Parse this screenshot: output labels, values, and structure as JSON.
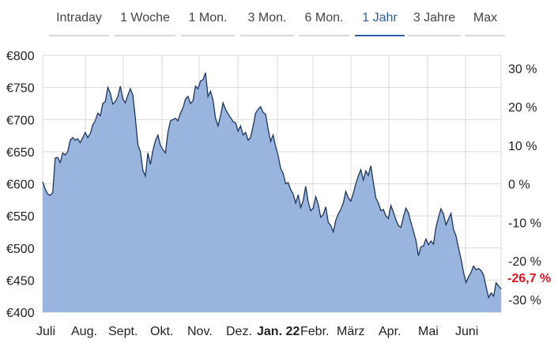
{
  "tabs": [
    {
      "label": "Intraday",
      "active": false
    },
    {
      "label": "1 Woche",
      "active": false
    },
    {
      "label": "1 Mon.",
      "active": false
    },
    {
      "label": "3 Mon.",
      "active": false
    },
    {
      "label": "6 Mon.",
      "active": false
    },
    {
      "label": "1 Jahr",
      "active": true
    },
    {
      "label": "3 Jahre",
      "active": false
    },
    {
      "label": "Max",
      "active": false
    }
  ],
  "colors": {
    "accent": "#2b5ea8",
    "area_fill": "#9ab5dd",
    "line": "#1c3560",
    "negative": "#e0141e",
    "grid": "#d9d9d9"
  },
  "current_change_label": "-26,7 %",
  "chart_data": {
    "type": "area",
    "y_unit": "€",
    "ylim": [
      400,
      800
    ],
    "y_ticks": [
      {
        "value": 800,
        "label": "€800"
      },
      {
        "value": 750,
        "label": "€750"
      },
      {
        "value": 700,
        "label": "€700"
      },
      {
        "value": 650,
        "label": "€650"
      },
      {
        "value": 600,
        "label": "€600"
      },
      {
        "value": 550,
        "label": "€550"
      },
      {
        "value": 500,
        "label": "€500"
      },
      {
        "value": 450,
        "label": "€450"
      },
      {
        "value": 400,
        "label": "€400"
      }
    ],
    "y2_ticks": [
      {
        "value": 30,
        "label": "30 %"
      },
      {
        "value": 20,
        "label": "20 %"
      },
      {
        "value": 10,
        "label": "10 %"
      },
      {
        "value": 0,
        "label": "0 %"
      },
      {
        "value": -10,
        "label": "-10 %"
      },
      {
        "value": -20,
        "label": "-20 %"
      },
      {
        "value": -30,
        "label": "-30 %"
      }
    ],
    "y2_base": 600,
    "x_ticks": [
      {
        "label": "Juli",
        "bold": false
      },
      {
        "label": "Aug.",
        "bold": false
      },
      {
        "label": "Sept.",
        "bold": false
      },
      {
        "label": "Okt.",
        "bold": false
      },
      {
        "label": "Nov.",
        "bold": false
      },
      {
        "label": "Dez.",
        "bold": false
      },
      {
        "label": "Jan. 22",
        "bold": true
      },
      {
        "label": "Febr.",
        "bold": false
      },
      {
        "label": "März",
        "bold": false
      },
      {
        "label": "Apr.",
        "bold": false
      },
      {
        "label": "Mai",
        "bold": false
      },
      {
        "label": "Juni",
        "bold": false
      }
    ],
    "grid": true,
    "series": [
      {
        "values": [
          603,
          592,
          584,
          582,
          586,
          640,
          641,
          633,
          648,
          645,
          650,
          668,
          672,
          668,
          670,
          664,
          672,
          680,
          672,
          678,
          692,
          698,
          710,
          706,
          725,
          728,
          750,
          741,
          724,
          728,
          736,
          752,
          732,
          726,
          738,
          748,
          738,
          702,
          661,
          650,
          621,
          612,
          648,
          630,
          652,
          667,
          676,
          660,
          653,
          648,
          680,
          698,
          700,
          702,
          698,
          710,
          718,
          732,
          736,
          725,
          729,
          752,
          748,
          760,
          762,
          773,
          736,
          744,
          730,
          702,
          690,
          706,
          726,
          716,
          709,
          703,
          697,
          695,
          682,
          690,
          676,
          680,
          668,
          672,
          690,
          710,
          716,
          720,
          711,
          708,
          685,
          666,
          676,
          658,
          644,
          624,
          616,
          600,
          602,
          591,
          584,
          570,
          583,
          563,
          574,
          596,
          572,
          558,
          562,
          580,
          568,
          548,
          552,
          564,
          540,
          535,
          525,
          543,
          553,
          560,
          570,
          588,
          578,
          573,
          585,
          600,
          612,
          622,
          606,
          620,
          613,
          628,
          602,
          578,
          570,
          558,
          560,
          550,
          546,
          566,
          556,
          544,
          535,
          532,
          548,
          562,
          555,
          540,
          526,
          512,
          488,
          502,
          503,
          514,
          505,
          511,
          506,
          532,
          548,
          561,
          553,
          536,
          545,
          554,
          529,
          519,
          500,
          483,
          462,
          446,
          455,
          462,
          472,
          466,
          468,
          465,
          458,
          440,
          423,
          430,
          425,
          446,
          441,
          436
        ]
      }
    ]
  }
}
